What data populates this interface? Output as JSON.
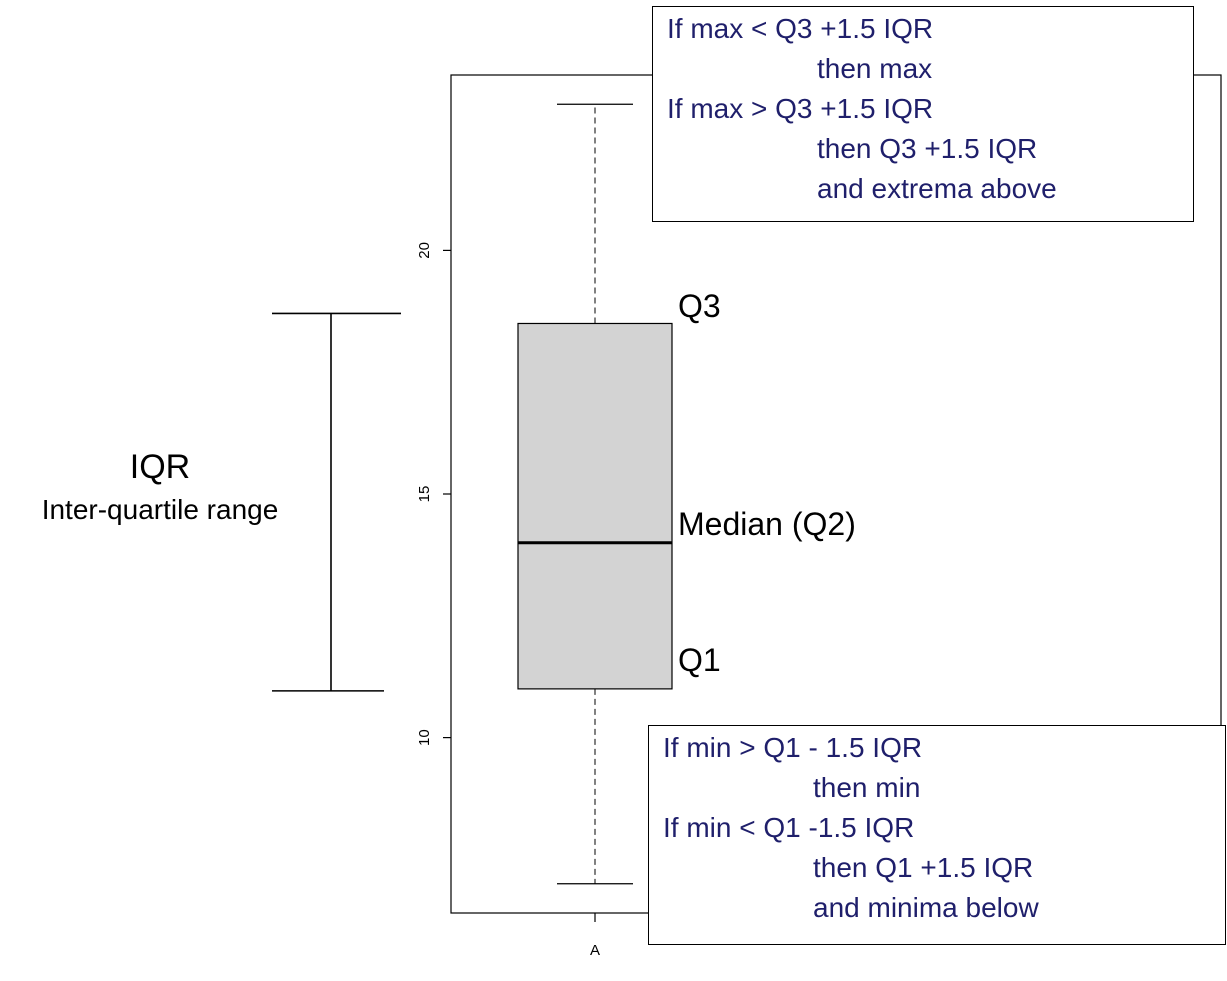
{
  "chart_data": {
    "type": "box",
    "categories": [
      "A"
    ],
    "boxes": [
      {
        "category": "A",
        "whisker_low": 7.0,
        "q1": 11.0,
        "median": 14.0,
        "q3": 18.5,
        "whisker_high": 23.0
      }
    ],
    "y_ticks": [
      10,
      15,
      20
    ],
    "ylim": [
      6.4,
      23.6
    ],
    "title": "",
    "xlabel": "",
    "ylabel": "",
    "colors": {
      "box_fill": "#d3d3d3",
      "annotation_text": "#1f1f6b",
      "stroke": "#000000"
    }
  },
  "annotations": {
    "q3_label": "Q3",
    "median_label": "Median (Q2)",
    "q1_label": "Q1",
    "iqr_title": "IQR",
    "iqr_subtitle": "Inter-quartile range",
    "max_rule": [
      "If max < Q3 +1.5 IQR",
      "then max",
      "If max > Q3 +1.5 IQR",
      "then Q3 +1.5 IQR",
      "and extrema above"
    ],
    "min_rule": [
      "If min > Q1 - 1.5 IQR",
      "then min",
      "If min < Q1 -1.5 IQR",
      "then Q1 +1.5 IQR",
      "and minima below"
    ]
  }
}
